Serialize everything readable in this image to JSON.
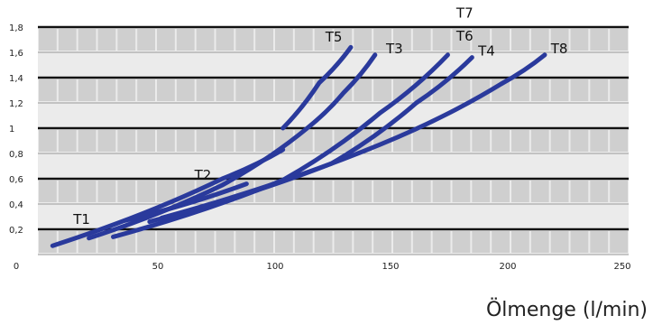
{
  "chart_data": {
    "type": "line",
    "title": "",
    "xlabel": "Ölmenge (l/min)",
    "ylabel": "",
    "xlim": [
      0,
      250
    ],
    "ylim": [
      0,
      1.8
    ],
    "x_ticks": [
      "0",
      "50",
      "100",
      "150",
      "200",
      "250"
    ],
    "y_ticks": [
      "0,2",
      "0,4",
      "0,6",
      "0,8",
      "1",
      "1,2",
      "1,4",
      "1,6",
      "1,8"
    ],
    "grid": true,
    "colors": {
      "line": "#2a3a9c",
      "band": "#ebebeb",
      "cell": "#cfcfcf",
      "major_rule": "#111111"
    },
    "series": [
      {
        "name": "T1",
        "points": [
          [
            15,
            0.07
          ],
          [
            85,
            0.6
          ],
          [
            110,
            0.83
          ]
        ]
      },
      {
        "name": "T2",
        "points": [
          [
            45,
            0.27
          ],
          [
            95,
            0.56
          ]
        ]
      },
      {
        "name": "T5",
        "points": [
          [
            110,
            1.0
          ],
          [
            125,
            1.36
          ],
          [
            138,
            1.64
          ]
        ]
      },
      {
        "name": "T3",
        "points": [
          [
            30,
            0.13
          ],
          [
            85,
            0.55
          ],
          [
            120,
            1.0
          ],
          [
            135,
            1.28
          ],
          [
            148,
            1.58
          ]
        ]
      },
      {
        "name": "T6",
        "points": [
          [
            40,
            0.14
          ],
          [
            110,
            0.59
          ],
          [
            150,
            1.12
          ],
          [
            178,
            1.58
          ]
        ]
      },
      {
        "name": "T4",
        "points": [
          [
            55,
            0.26
          ],
          [
            130,
            0.72
          ],
          [
            165,
            1.2
          ],
          [
            188,
            1.56
          ]
        ]
      },
      {
        "name": "T8",
        "points": [
          [
            60,
            0.29
          ],
          [
            150,
            0.87
          ],
          [
            200,
            1.35
          ],
          [
            218,
            1.58
          ]
        ]
      }
    ],
    "labels": [
      {
        "text": "T1",
        "x": 27,
        "y": 0.28
      },
      {
        "text": "T2",
        "x": 77,
        "y": 0.63
      },
      {
        "text": "T5",
        "x": 131,
        "y": 1.72
      },
      {
        "text": "T3",
        "x": 156,
        "y": 1.63
      },
      {
        "text": "T7",
        "x": 185,
        "y": 1.91
      },
      {
        "text": "T6",
        "x": 185,
        "y": 1.73
      },
      {
        "text": "T4",
        "x": 194,
        "y": 1.61
      },
      {
        "text": "T8",
        "x": 224,
        "y": 1.63
      }
    ]
  }
}
